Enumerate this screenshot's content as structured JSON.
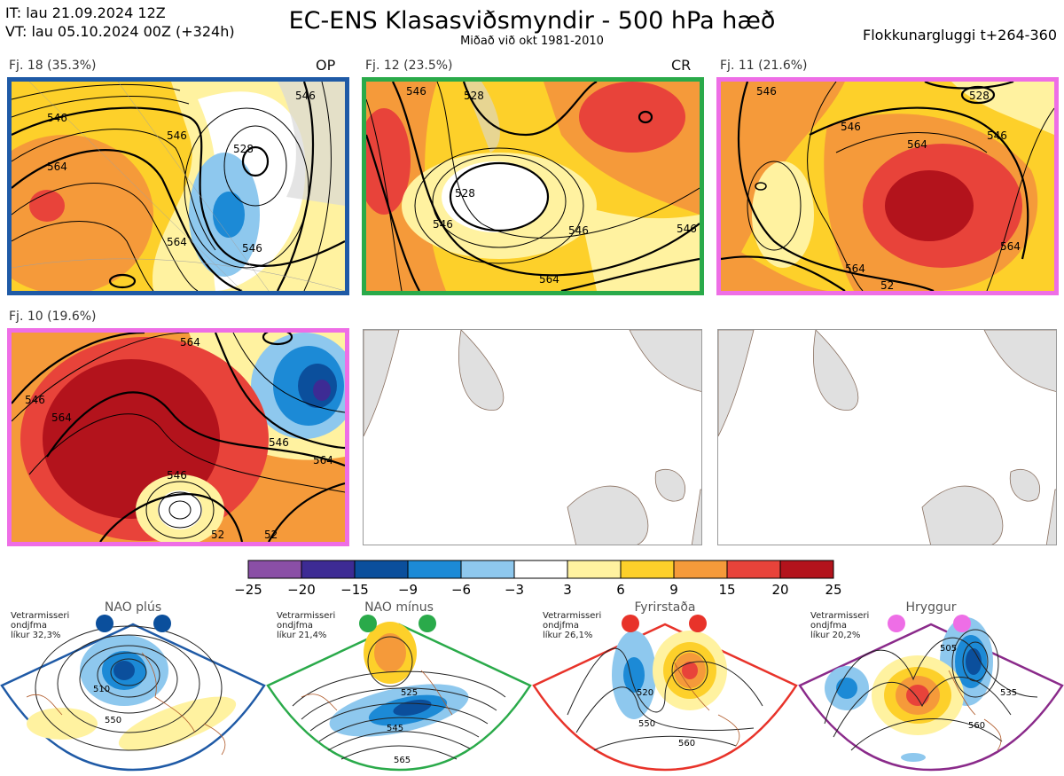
{
  "header": {
    "it_line": "IT: lau 21.09.2024 12Z",
    "vt_line": "VT: lau 05.10.2024 00Z  (+324h)",
    "title": "EC-ENS Klasasviðsmyndir - 500 hPa hæð",
    "subtitle": "Miðað við okt 1981-2010",
    "window": "Flokkunargluggi t+264-360"
  },
  "clusters": [
    {
      "label": "Fj. 18 (35.3%)",
      "tag": "OP",
      "border": "#1f5aa6",
      "contours": [
        "546",
        "546",
        "528",
        "564",
        "564",
        "546",
        "546"
      ]
    },
    {
      "label": "Fj. 12 (23.5%)",
      "tag": "CR",
      "border": "#2aaa4a",
      "contours": [
        "546",
        "528",
        "528",
        "546",
        "546",
        "564",
        "546"
      ]
    },
    {
      "label": "Fj. 11 (21.6%)",
      "tag": "",
      "border": "#ee6ee6",
      "contours": [
        "546",
        "528",
        "546",
        "564",
        "546",
        "564",
        "564",
        "52"
      ]
    },
    {
      "label": "Fj. 10 (19.6%)",
      "tag": "",
      "border": "#ee6ee6",
      "contours": [
        "546",
        "564",
        "546",
        "546",
        "564",
        "564",
        "52",
        "52"
      ]
    }
  ],
  "colorbar": {
    "ticks": [
      "−25",
      "−20",
      "−15",
      "−9",
      "−6",
      "−3",
      "3",
      "6",
      "9",
      "15",
      "20",
      "25"
    ],
    "colors": [
      "#8a4fa6",
      "#3d2b94",
      "#0b4f9c",
      "#1c8ad6",
      "#8ec8ee",
      "#ffffff",
      "#fff2a0",
      "#fdd02a",
      "#f59a3a",
      "#e8433a",
      "#b3131c"
    ]
  },
  "regimes": [
    {
      "title": "NAO plús",
      "note": [
        "Vetrarmisseri",
        "ondjfma",
        "líkur 32,3%"
      ],
      "color": "#1f5aa6",
      "dot": "#0b4f9c",
      "contours": [
        "510",
        "550"
      ]
    },
    {
      "title": "NAO mínus",
      "note": [
        "Vetrarmisseri",
        "ondjfma",
        "líkur 21,4%"
      ],
      "color": "#2aaa4a",
      "dot": "#2aaa4a",
      "contours": [
        "525",
        "545",
        "565"
      ]
    },
    {
      "title": "Fyrirstaða",
      "note": [
        "Vetrarmisseri",
        "ondjfma",
        "líkur 26,1%"
      ],
      "color": "#e8332a",
      "dot": "#e8332a",
      "contours": [
        "520",
        "550",
        "560"
      ]
    },
    {
      "title": "Hryggur",
      "note": [
        "Vetrarmisseri",
        "ondjfma",
        "líkur 20,2%"
      ],
      "color": "#8a2a8a",
      "dot": "#ee6ee6",
      "contours": [
        "505",
        "535",
        "560"
      ]
    }
  ]
}
